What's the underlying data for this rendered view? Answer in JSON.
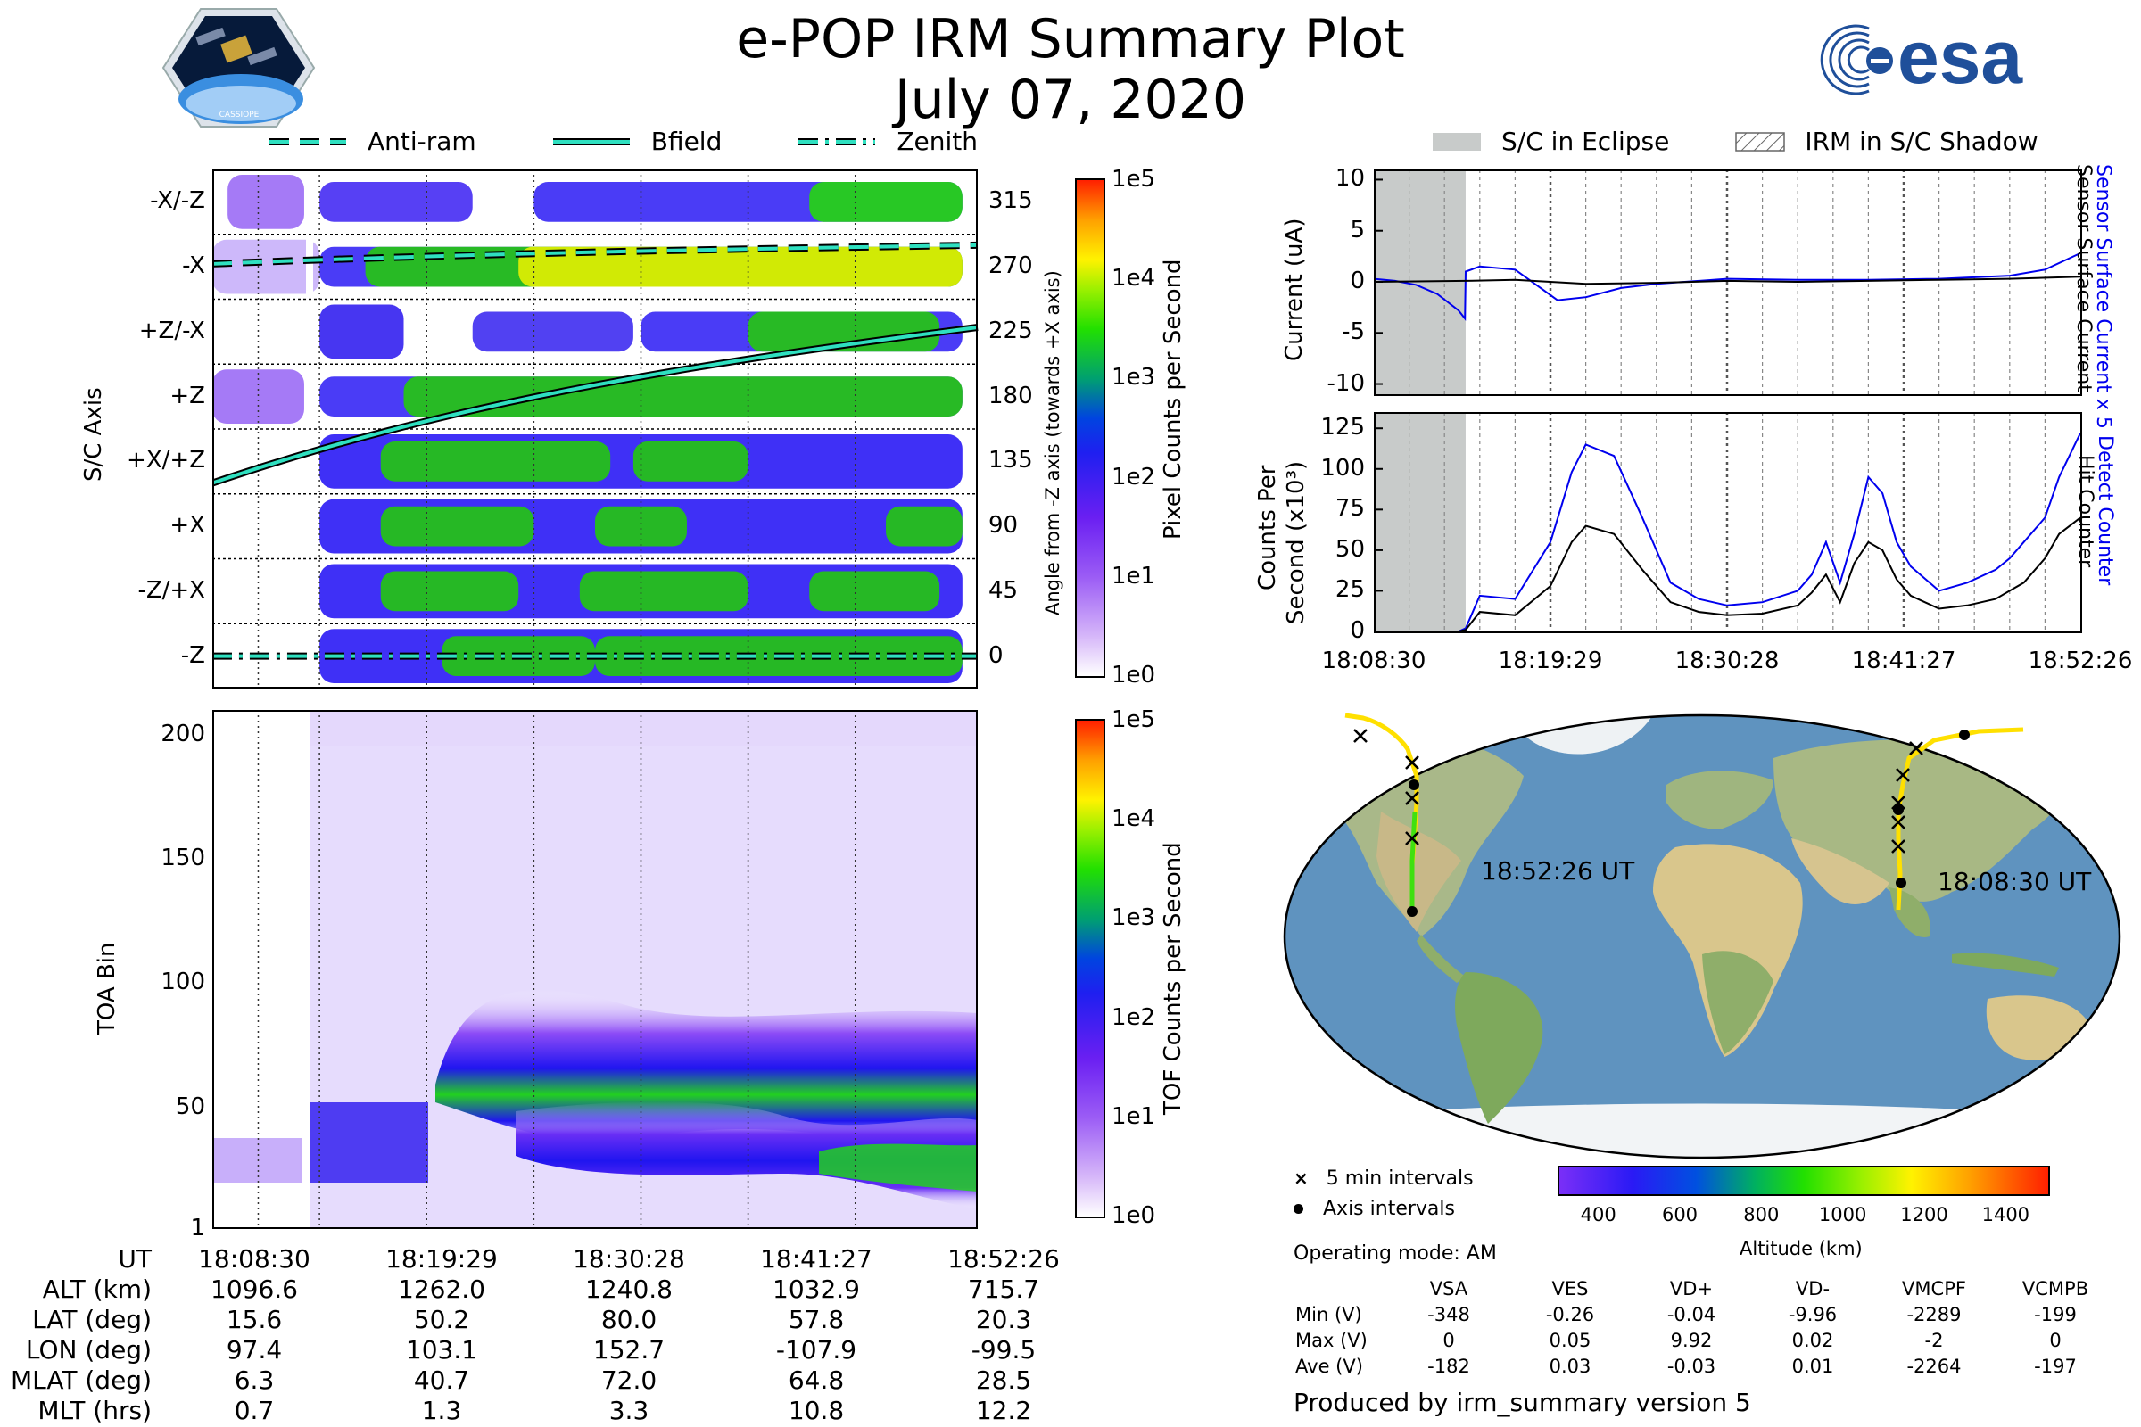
{
  "title": {
    "line1": "e-POP IRM Summary Plot",
    "line2": "July 07, 2020"
  },
  "logos": {
    "left_badge": "CASSIOPE",
    "right": "esa"
  },
  "legend_lines": [
    {
      "label": "Anti-ram",
      "style": "dashed"
    },
    {
      "label": "Bfield",
      "style": "solid"
    },
    {
      "label": "Zenith",
      "style": "dashdot"
    }
  ],
  "legend_right": [
    {
      "label": "S/C in Eclipse",
      "style": "gray-box"
    },
    {
      "label": "IRM in S/C Shadow",
      "style": "hatched-box"
    }
  ],
  "colors": {
    "trace_blue": "#0000ee",
    "trace_black": "#000000",
    "eclipse_gray": "#c8cbca",
    "line_cyan": "#2fe0c0",
    "orbit_yellow": "#ffe000",
    "orbit_green": "#40e010"
  },
  "chart_data": [
    {
      "type": "heatmap",
      "name": "pixel-counts",
      "ylabel": "S/C Axis",
      "ylabel_right": "Angle from -Z axis (towards +X axis)",
      "yticks_left": [
        "-X/-Z",
        "-X",
        "+Z/-X",
        "+Z",
        "+X/+Z",
        "+X",
        "-Z/+X",
        "-Z"
      ],
      "yticks_right": [
        "315",
        "270",
        "225",
        "180",
        "135",
        "90",
        "45",
        "0"
      ],
      "colorbar": {
        "label": "Pixel Counts per Second",
        "ticks": [
          "1e5",
          "1e4",
          "1e3",
          "1e2",
          "1e1",
          "1e0"
        ]
      },
      "series": [
        {
          "name": "Anti-ram",
          "angle_start": 272,
          "angle_end": 285
        },
        {
          "name": "Bfield",
          "angle_start": 120,
          "angle_end": 228
        },
        {
          "name": "Zenith",
          "angle_start": 0,
          "angle_end": 0
        }
      ]
    },
    {
      "type": "heatmap",
      "name": "tof-counts",
      "ylabel": "TOA Bin",
      "yticks": [
        "200",
        "150",
        "100",
        "50",
        "1"
      ],
      "ylim": [
        1,
        210
      ],
      "colorbar": {
        "label": "TOF Counts per Second",
        "ticks": [
          "1e5",
          "1e4",
          "1e3",
          "1e2",
          "1e1",
          "1e0"
        ]
      }
    },
    {
      "type": "line",
      "name": "current",
      "ylabel": "Current (uA)",
      "ylabel_right_blue": "Sensor Surface Current x 5",
      "ylabel_right_black": "Sensor Surface Current",
      "ylim": [
        -11,
        11
      ],
      "yticks": [
        "10",
        "5",
        "0",
        "-5",
        "-10"
      ],
      "eclipse": [
        0,
        0.13
      ],
      "series": [
        {
          "name": "Sensor Surface Current x 5",
          "color": "blue",
          "x": [
            0,
            0.03,
            0.06,
            0.09,
            0.12,
            0.129,
            0.13,
            0.15,
            0.2,
            0.22,
            0.26,
            0.3,
            0.35,
            0.4,
            0.5,
            0.6,
            0.7,
            0.8,
            0.9,
            0.95,
            1.0
          ],
          "y": [
            0.3,
            0.1,
            -0.3,
            -1.2,
            -2.8,
            -3.6,
            1.0,
            1.5,
            1.2,
            0.2,
            -1.8,
            -1.5,
            -0.6,
            -0.2,
            0.3,
            0.2,
            0.2,
            0.3,
            0.6,
            1.2,
            2.8
          ]
        },
        {
          "name": "Sensor Surface Current",
          "color": "black",
          "x": [
            0,
            0.13,
            0.2,
            0.3,
            0.4,
            0.5,
            0.6,
            0.7,
            0.8,
            0.9,
            1.0
          ],
          "y": [
            0.0,
            0.1,
            0.2,
            -0.2,
            -0.1,
            0.1,
            0.0,
            0.1,
            0.2,
            0.3,
            0.5
          ]
        }
      ]
    },
    {
      "type": "line",
      "name": "counts",
      "ylabel_line1": "Counts Per",
      "ylabel_line2": "Second (x10³)",
      "ylabel_right_blue": "Detect Counter",
      "ylabel_right_black": "Hit Counter",
      "ylim": [
        0,
        135
      ],
      "yticks": [
        "125",
        "100",
        "75",
        "50",
        "25",
        "0"
      ],
      "xticks": [
        "18:08:30",
        "18:19:29",
        "18:30:28",
        "18:41:27",
        "18:52:26"
      ],
      "eclipse": [
        0,
        0.13
      ],
      "series": [
        {
          "name": "Detect Counter",
          "color": "blue",
          "x": [
            0,
            0.12,
            0.13,
            0.15,
            0.2,
            0.25,
            0.28,
            0.3,
            0.34,
            0.38,
            0.42,
            0.46,
            0.5,
            0.55,
            0.6,
            0.62,
            0.64,
            0.66,
            0.68,
            0.7,
            0.72,
            0.74,
            0.76,
            0.8,
            0.84,
            0.88,
            0.9,
            0.92,
            0.95,
            0.97,
            1.0
          ],
          "y": [
            0,
            0,
            2,
            22,
            20,
            55,
            98,
            115,
            108,
            70,
            30,
            20,
            16,
            18,
            25,
            35,
            55,
            30,
            60,
            95,
            85,
            55,
            40,
            25,
            30,
            38,
            45,
            55,
            70,
            95,
            122
          ]
        },
        {
          "name": "Hit Counter",
          "color": "black",
          "x": [
            0,
            0.12,
            0.13,
            0.15,
            0.2,
            0.25,
            0.28,
            0.3,
            0.34,
            0.38,
            0.42,
            0.46,
            0.5,
            0.55,
            0.6,
            0.62,
            0.64,
            0.66,
            0.68,
            0.7,
            0.72,
            0.74,
            0.76,
            0.8,
            0.84,
            0.88,
            0.9,
            0.92,
            0.95,
            0.97,
            1.0
          ],
          "y": [
            0,
            0,
            1,
            12,
            10,
            28,
            55,
            65,
            60,
            38,
            18,
            12,
            10,
            11,
            16,
            24,
            35,
            18,
            42,
            55,
            50,
            32,
            22,
            14,
            16,
            20,
            25,
            30,
            45,
            60,
            70
          ]
        }
      ]
    },
    {
      "type": "scatter",
      "name": "orbit-map",
      "annotations": [
        "18:52:26 UT",
        "18:08:30 UT"
      ],
      "colorbar": {
        "label": "Altitude (km)",
        "ticks": [
          "400",
          "600",
          "800",
          "1000",
          "1200",
          "1400"
        ]
      }
    }
  ],
  "time_table": {
    "rows": [
      {
        "label": "UT",
        "values": [
          "18:08:30",
          "18:19:29",
          "18:30:28",
          "18:41:27",
          "18:52:26"
        ]
      },
      {
        "label": "ALT (km)",
        "values": [
          "1096.6",
          "1262.0",
          "1240.8",
          "1032.9",
          "715.7"
        ]
      },
      {
        "label": "LAT (deg)",
        "values": [
          "15.6",
          "50.2",
          "80.0",
          "57.8",
          "20.3"
        ]
      },
      {
        "label": "LON (deg)",
        "values": [
          "97.4",
          "103.1",
          "152.7",
          "-107.9",
          "-99.5"
        ]
      },
      {
        "label": "MLAT (deg)",
        "values": [
          "6.3",
          "40.7",
          "72.0",
          "64.8",
          "28.5"
        ]
      },
      {
        "label": "MLT (hrs)",
        "values": [
          "0.7",
          "1.3",
          "3.3",
          "10.8",
          "12.2"
        ]
      }
    ]
  },
  "map_legend": {
    "five_min": "5 min intervals",
    "axis": "Axis intervals",
    "mode": "Operating mode: AM"
  },
  "volt_table": {
    "headers": [
      "VSA",
      "VES",
      "VD+",
      "VD-",
      "VMCPF",
      "VCMPB"
    ],
    "rows": [
      {
        "label": "Min (V)",
        "values": [
          "-348",
          "-0.26",
          "-0.04",
          "-9.96",
          "-2289",
          "-199"
        ]
      },
      {
        "label": "Max (V)",
        "values": [
          "0",
          "0.05",
          "9.92",
          "0.02",
          "-2",
          "0"
        ]
      },
      {
        "label": "Ave (V)",
        "values": [
          "-182",
          "0.03",
          "-0.03",
          "0.01",
          "-2264",
          "-197"
        ]
      }
    ]
  },
  "footer": "Produced by irm_summary version 5"
}
